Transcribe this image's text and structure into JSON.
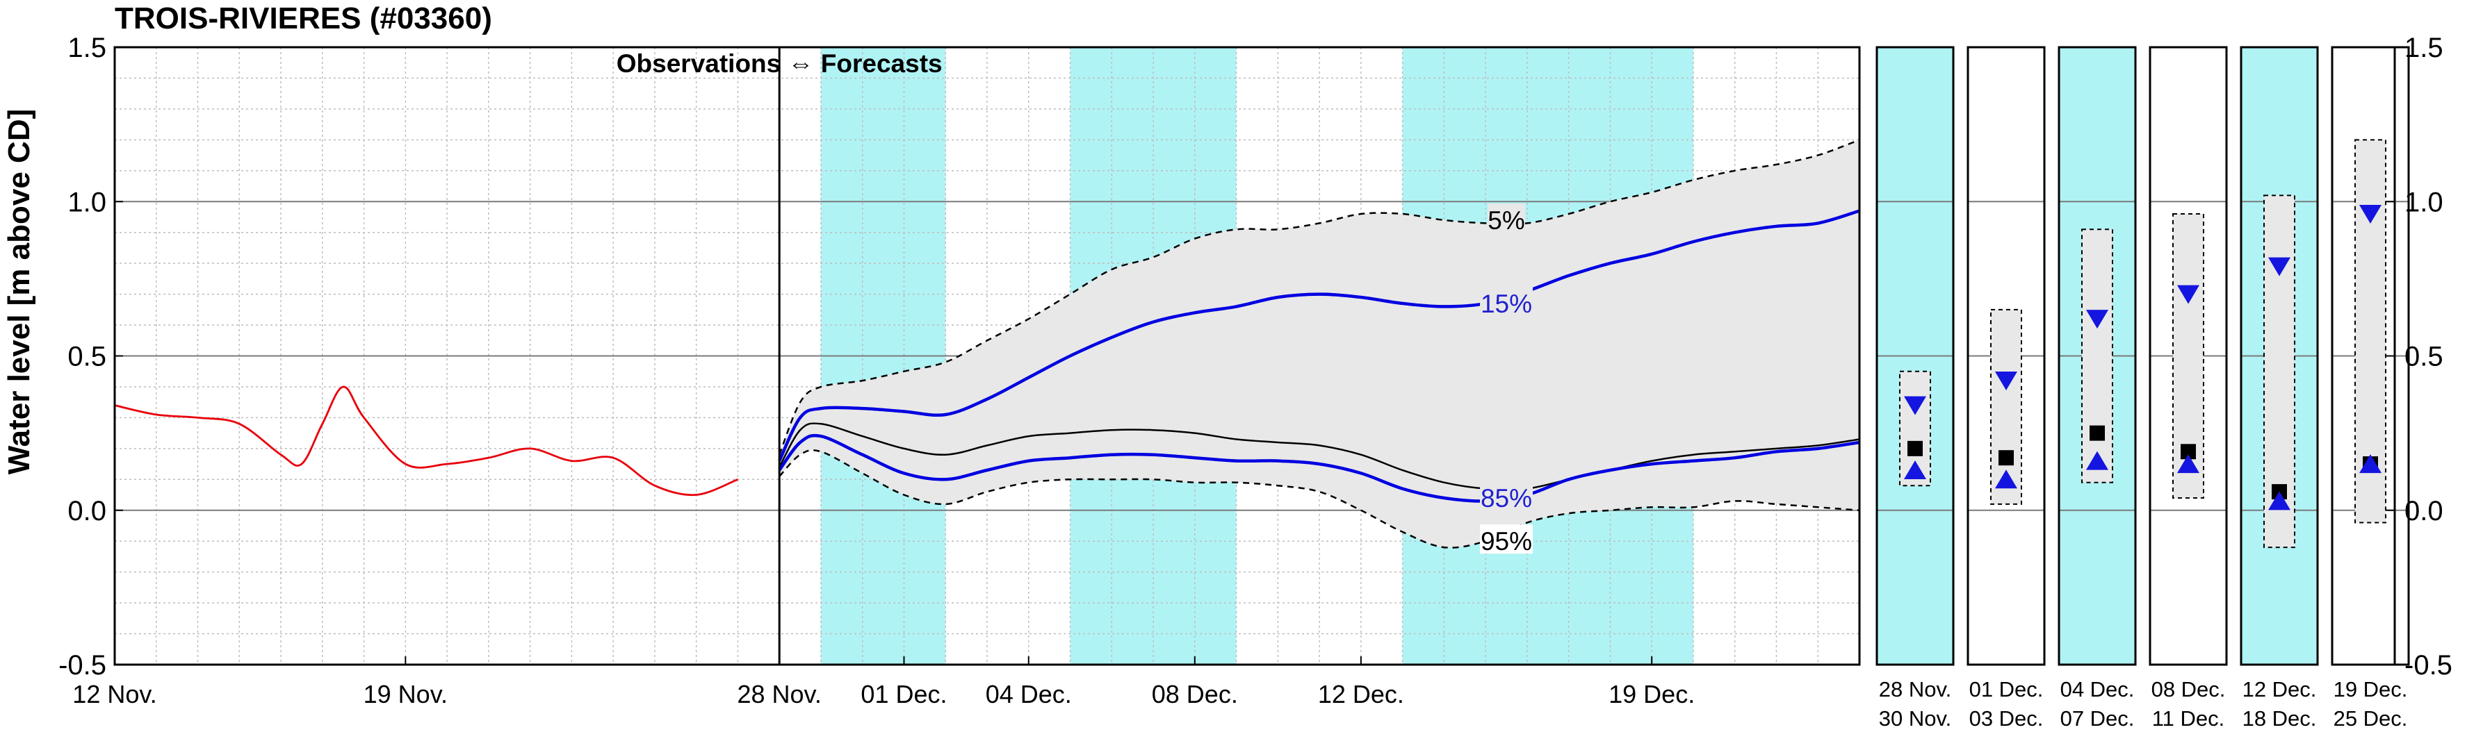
{
  "chart_data": {
    "type": "line",
    "title": "TROIS-RIVIERES (#03360)",
    "ylabel": "Water level [m above CD]",
    "ylim": [
      -0.5,
      1.5
    ],
    "yticks": [
      -0.5,
      0.0,
      0.5,
      1.0,
      1.5
    ],
    "ytick_labels": [
      "-0.5",
      "0.0",
      "0.5",
      "1.0",
      "1.5"
    ],
    "grid": true,
    "x_axis": {
      "unit": "days",
      "start": "12 Nov.",
      "xlim": [
        0,
        42
      ],
      "tick_positions": [
        0,
        7,
        16,
        19,
        22,
        26,
        30,
        37
      ],
      "tick_labels": [
        "12 Nov.",
        "19 Nov.",
        "28 Nov.",
        "01 Dec.",
        "04 Dec.",
        "08 Dec.",
        "12 Dec.",
        "19 Dec."
      ]
    },
    "annotation": "Observations ⇔ Forecasts",
    "forecast_start_day": 16,
    "shaded_periods": [
      [
        17,
        20
      ],
      [
        23,
        27
      ],
      [
        31,
        38
      ]
    ],
    "series": [
      {
        "name": "Observations",
        "color": "#e8000b",
        "x": [
          0,
          1,
          2,
          3,
          4,
          4.5,
          5,
          5.5,
          6,
          7,
          8,
          9,
          10,
          11,
          12,
          13,
          14,
          15
        ],
        "values": [
          0.34,
          0.31,
          0.3,
          0.28,
          0.18,
          0.15,
          0.28,
          0.4,
          0.3,
          0.15,
          0.15,
          0.17,
          0.2,
          0.16,
          0.17,
          0.08,
          0.05,
          0.1
        ]
      },
      {
        "name": "5%",
        "color": "#000000",
        "dashed": true,
        "x": [
          16,
          16.5,
          17,
          18,
          19,
          20,
          21,
          22,
          23,
          24,
          25,
          26,
          27,
          28,
          29,
          30,
          31,
          32,
          33,
          34,
          35,
          36,
          37,
          38,
          39,
          40,
          41,
          42
        ],
        "values": [
          0.18,
          0.35,
          0.4,
          0.42,
          0.45,
          0.48,
          0.55,
          0.62,
          0.7,
          0.78,
          0.82,
          0.88,
          0.91,
          0.91,
          0.93,
          0.96,
          0.96,
          0.94,
          0.93,
          0.93,
          0.96,
          1.0,
          1.03,
          1.07,
          1.1,
          1.12,
          1.15,
          1.2
        ]
      },
      {
        "name": "15%",
        "color": "#0000e0",
        "label_color": "#2020d0",
        "x": [
          16,
          16.5,
          17,
          18,
          19,
          20,
          21,
          22,
          23,
          24,
          25,
          26,
          27,
          28,
          29,
          30,
          31,
          32,
          33,
          34,
          35,
          36,
          37,
          38,
          39,
          40,
          41,
          42
        ],
        "values": [
          0.16,
          0.3,
          0.33,
          0.33,
          0.32,
          0.31,
          0.36,
          0.43,
          0.5,
          0.56,
          0.61,
          0.64,
          0.66,
          0.69,
          0.7,
          0.69,
          0.67,
          0.66,
          0.67,
          0.71,
          0.76,
          0.8,
          0.83,
          0.87,
          0.9,
          0.92,
          0.93,
          0.97
        ]
      },
      {
        "name": "Median",
        "color": "#000000",
        "x": [
          16,
          16.5,
          17,
          18,
          19,
          20,
          21,
          22,
          23,
          24,
          25,
          26,
          27,
          28,
          29,
          30,
          31,
          32,
          33,
          34,
          35,
          36,
          37,
          38,
          39,
          40,
          41,
          42
        ],
        "values": [
          0.14,
          0.26,
          0.28,
          0.24,
          0.2,
          0.18,
          0.21,
          0.24,
          0.25,
          0.26,
          0.26,
          0.25,
          0.23,
          0.22,
          0.21,
          0.18,
          0.13,
          0.09,
          0.07,
          0.07,
          0.1,
          0.13,
          0.16,
          0.18,
          0.19,
          0.2,
          0.21,
          0.23
        ]
      },
      {
        "name": "85%",
        "color": "#0000e0",
        "label_color": "#2020d0",
        "x": [
          16,
          16.5,
          17,
          18,
          19,
          20,
          21,
          22,
          23,
          24,
          25,
          26,
          27,
          28,
          29,
          30,
          31,
          32,
          33,
          34,
          35,
          36,
          37,
          38,
          39,
          40,
          41,
          42
        ],
        "values": [
          0.13,
          0.22,
          0.24,
          0.18,
          0.12,
          0.1,
          0.13,
          0.16,
          0.17,
          0.18,
          0.18,
          0.17,
          0.16,
          0.16,
          0.15,
          0.12,
          0.07,
          0.04,
          0.03,
          0.05,
          0.1,
          0.13,
          0.15,
          0.16,
          0.17,
          0.19,
          0.2,
          0.22
        ]
      },
      {
        "name": "95%",
        "color": "#000000",
        "dashed": true,
        "x": [
          16,
          16.5,
          17,
          18,
          19,
          20,
          21,
          22,
          23,
          24,
          25,
          26,
          27,
          28,
          29,
          30,
          31,
          32,
          33,
          34,
          35,
          36,
          37,
          38,
          39,
          40,
          41,
          42
        ],
        "values": [
          0.11,
          0.18,
          0.19,
          0.12,
          0.05,
          0.02,
          0.06,
          0.09,
          0.1,
          0.1,
          0.1,
          0.09,
          0.09,
          0.08,
          0.06,
          0.0,
          -0.07,
          -0.12,
          -0.1,
          -0.04,
          -0.01,
          0.0,
          0.01,
          0.01,
          0.03,
          0.02,
          0.01,
          0.0
        ]
      }
    ],
    "series_labels": [
      {
        "text": "5%",
        "series": "5%",
        "x": 33.5,
        "y": 0.94
      },
      {
        "text": "15%",
        "series": "15%",
        "x": 33.5,
        "y": 0.67
      },
      {
        "text": "85%",
        "series": "85%",
        "x": 33.5,
        "y": 0.04
      },
      {
        "text": "95%",
        "series": "95%",
        "x": 33.5,
        "y": -0.1
      }
    ],
    "period_panels": [
      {
        "label_top": "28 Nov.",
        "label_bottom": "30 Nov.",
        "shaded": true,
        "box": [
          0.08,
          0.45
        ],
        "up": 0.34,
        "median": 0.2,
        "down": 0.13
      },
      {
        "label_top": "01 Dec.",
        "label_bottom": "03 Dec.",
        "shaded": false,
        "box": [
          0.02,
          0.65
        ],
        "up": 0.42,
        "median": 0.17,
        "down": 0.1
      },
      {
        "label_top": "04 Dec.",
        "label_bottom": "07 Dec.",
        "shaded": true,
        "box": [
          0.09,
          0.91
        ],
        "up": 0.62,
        "median": 0.25,
        "down": 0.16
      },
      {
        "label_top": "08 Dec.",
        "label_bottom": "11 Dec.",
        "shaded": false,
        "box": [
          0.04,
          0.96
        ],
        "up": 0.7,
        "median": 0.19,
        "down": 0.15
      },
      {
        "label_top": "12 Dec.",
        "label_bottom": "18 Dec.",
        "shaded": true,
        "box": [
          -0.12,
          1.02
        ],
        "up": 0.79,
        "median": 0.06,
        "down": 0.03
      },
      {
        "label_top": "19 Dec.",
        "label_bottom": "25 Dec.",
        "shaded": false,
        "box": [
          -0.04,
          1.2
        ],
        "up": 0.96,
        "median": 0.15,
        "down": 0.15
      }
    ],
    "colors": {
      "shade": "#b0f3f5",
      "envelope": "#e8e8e8",
      "observations": "#e8000b",
      "percentile": "#0000e0"
    }
  }
}
